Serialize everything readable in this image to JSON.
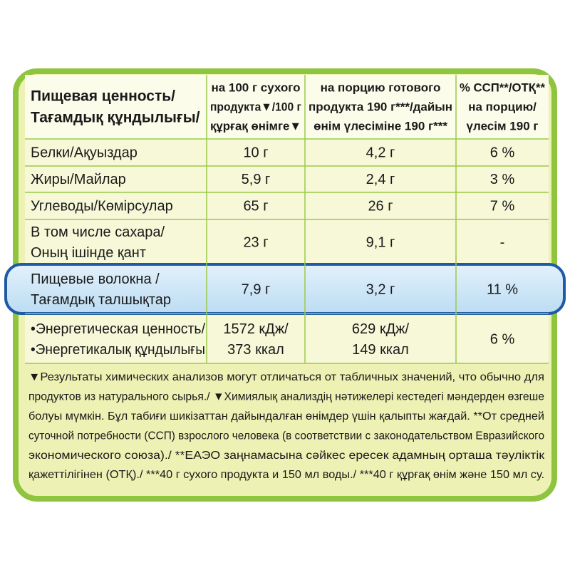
{
  "header": [
    [
      "Пищевая ценность/",
      "Тағамдық құндылығы/"
    ],
    [
      "на 100 г сухого",
      "продукта▼/100 г",
      "құрғақ өнімге▼"
    ],
    [
      "на порцию готового",
      "продукта 190 г***/дайын",
      "өнім үлесіміне 190 г***"
    ],
    [
      "% ССП**/ОТҚ**",
      "на порцию/",
      "үлесім 190 г"
    ]
  ],
  "rows": [
    [
      [
        "Белки/Ақуыздар"
      ],
      [
        "10 г"
      ],
      [
        "4,2 г"
      ],
      [
        "6 %"
      ]
    ],
    [
      [
        "Жиры/Майлар"
      ],
      [
        "5,9 г"
      ],
      [
        "2,4 г"
      ],
      [
        "3 %"
      ]
    ],
    [
      [
        "Углеводы/Көмірсулар"
      ],
      [
        "65 г"
      ],
      [
        "26 г"
      ],
      [
        "7 %"
      ]
    ],
    [
      [
        "В том числе сахара/",
        "Оның ішінде қант"
      ],
      [
        "23 г"
      ],
      [
        "9,1 г"
      ],
      [
        "-"
      ]
    ],
    [
      [
        "Пищевые волокна /",
        "Тағамдық талшықтар"
      ],
      [
        "7,9 г"
      ],
      [
        "3,2 г"
      ],
      [
        "11 %"
      ]
    ],
    [
      [
        "•Энергетическая ценность/",
        "•Энергетикалық құндылығы"
      ],
      [
        "1572 кДж/",
        "373 ккал"
      ],
      [
        "629 кДж/",
        "149 ккал"
      ],
      [
        "6 %"
      ]
    ]
  ],
  "footnote": [
    "▼Результаты химических анализов могут отличаться от табличных значений, что обычно для",
    "продуктов из натурального сырья./ ▼Химиялық анализдің нәтижелері кестедегі мәндерден өзгеше",
    "болуы мүмкін. Бұл табиғи шикізаттан дайындалған өнімдер үшін қалыпты жағдай. **От средней",
    "суточной потребности (ССП) взрослого человека (в соответствии с законодательством Евразийского",
    "экономического союза)./ **ЕАЭО заңнамасына сәйкес ересек адамның орташа тәуліктік",
    "қажеттілігінен (ОТҚ)./ ***40 г сухого продукта и 150 мл воды./ ***40 г құрғақ өнім және 150 мл су."
  ]
}
